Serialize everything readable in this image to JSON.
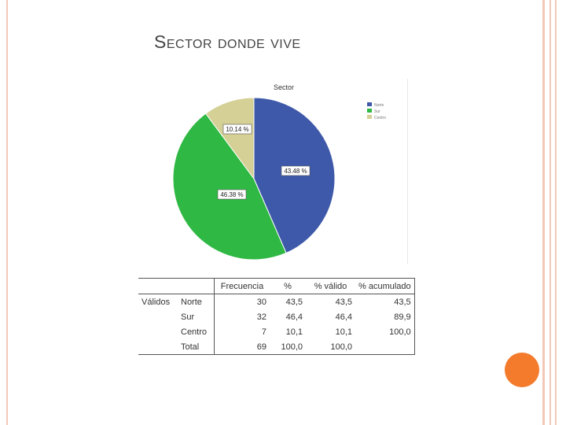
{
  "slide": {
    "title": "Sector donde vive"
  },
  "chart_data": {
    "type": "pie",
    "title": "Sector",
    "categories": [
      "Norte",
      "Sur",
      "Centro"
    ],
    "values": [
      43.48,
      46.38,
      10.14
    ],
    "data_labels": [
      "43.48 %",
      "46.38 %",
      "10.14 %"
    ],
    "colors": [
      "#3e59a9",
      "#2fb844",
      "#d5d095"
    ],
    "legend_position": "top-right",
    "start_angle_deg": 0,
    "direction": "clockwise"
  },
  "table": {
    "headers": [
      "",
      "",
      "Frecuencia",
      "%",
      "% válido",
      "% acumulado"
    ],
    "group_label": "Válidos",
    "rows": [
      {
        "label": "Norte",
        "frecuencia": "30",
        "pct": "43,5",
        "valido": "43,5",
        "acumulado": "43,5"
      },
      {
        "label": "Sur",
        "frecuencia": "32",
        "pct": "46,4",
        "valido": "46,4",
        "acumulado": "89,9"
      },
      {
        "label": "Centro",
        "frecuencia": "7",
        "pct": "10,1",
        "valido": "10,1",
        "acumulado": "100,0"
      },
      {
        "label": "Total",
        "frecuencia": "69",
        "pct": "100,0",
        "valido": "100,0",
        "acumulado": ""
      }
    ]
  }
}
